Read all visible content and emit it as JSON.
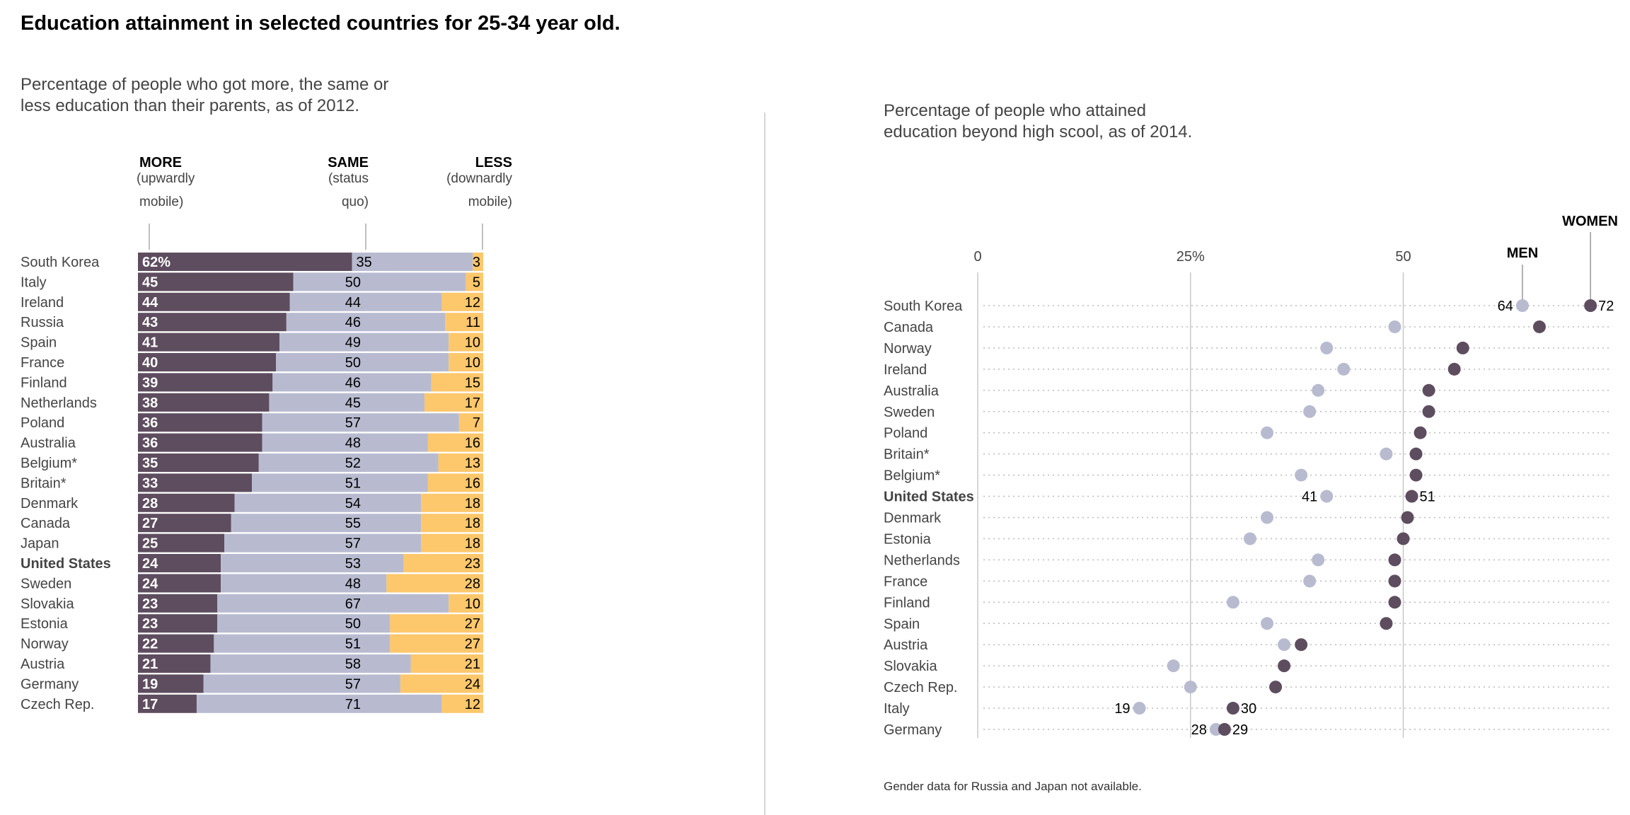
{
  "title": "Education attainment in selected countries for 25-34 year old.",
  "colors": {
    "dark": "#5e4d5f",
    "light": "#b8bbd0",
    "yellow": "#fdc76b",
    "grid": "#c8c8c8"
  },
  "chart_data": [
    {
      "type": "bar",
      "stacked": true,
      "subtitle": [
        "Percentage of people who got more, the same or",
        "less education than their parents, as of 2012."
      ],
      "headers": [
        {
          "label": "MORE",
          "sub1": "(upwardly",
          "sub2": "mobile)"
        },
        {
          "label": "SAME",
          "sub1": "(status",
          "sub2": "quo)"
        },
        {
          "label": "LESS",
          "sub1": "(downardly",
          "sub2": "mobile)"
        }
      ],
      "first_more_suffix": "%",
      "categories": [
        "South Korea",
        "Italy",
        "Ireland",
        "Russia",
        "Spain",
        "France",
        "Finland",
        "Netherlands",
        "Poland",
        "Australia",
        "Belgium*",
        "Britain*",
        "Denmark",
        "Canada",
        "Japan",
        "United States",
        "Sweden",
        "Slovakia",
        "Estonia",
        "Norway",
        "Austria",
        "Germany",
        "Czech Rep."
      ],
      "highlight": "United States",
      "series": [
        {
          "name": "MORE",
          "values": [
            62,
            45,
            44,
            43,
            41,
            40,
            39,
            38,
            36,
            36,
            35,
            33,
            28,
            27,
            25,
            24,
            24,
            23,
            23,
            22,
            21,
            19,
            17
          ]
        },
        {
          "name": "SAME",
          "values": [
            35,
            50,
            44,
            46,
            49,
            50,
            46,
            45,
            57,
            48,
            52,
            51,
            54,
            55,
            57,
            53,
            48,
            67,
            50,
            51,
            58,
            57,
            71
          ]
        },
        {
          "name": "LESS",
          "values": [
            3,
            5,
            12,
            11,
            10,
            10,
            15,
            17,
            7,
            16,
            13,
            16,
            18,
            18,
            18,
            23,
            28,
            10,
            27,
            27,
            21,
            24,
            12
          ]
        }
      ],
      "ylim": [
        0,
        100
      ]
    },
    {
      "type": "scatter",
      "subtitle": [
        "Percentage of people who attained",
        "education beyond high scool, as of 2014."
      ],
      "x_ticks": [
        {
          "value": 0,
          "label": "0"
        },
        {
          "value": 25,
          "label": "25%"
        },
        {
          "value": 50,
          "label": "50"
        }
      ],
      "xlim": [
        0,
        75
      ],
      "legend": {
        "men": "MEN",
        "women": "WOMEN"
      },
      "categories": [
        "South Korea",
        "Canada",
        "Norway",
        "Ireland",
        "Australia",
        "Sweden",
        "Poland",
        "Britain*",
        "Belgium*",
        "United States",
        "Denmark",
        "Estonia",
        "Netherlands",
        "France",
        "Finland",
        "Spain",
        "Austria",
        "Slovakia",
        "Czech Rep.",
        "Italy",
        "Germany"
      ],
      "highlight": "United States",
      "series": [
        {
          "name": "MEN",
          "values": [
            64,
            49,
            41,
            43,
            40,
            39,
            34,
            48,
            38,
            41,
            34,
            32,
            40,
            39,
            30,
            34,
            36,
            23,
            25,
            19,
            28
          ]
        },
        {
          "name": "WOMEN",
          "values": [
            72,
            66,
            57,
            56,
            53,
            53,
            52,
            51.5,
            51.5,
            51,
            50.5,
            50,
            49,
            49,
            49,
            48,
            38,
            36,
            35,
            30,
            29
          ]
        }
      ],
      "labeled_rows": [
        "South Korea",
        "United States",
        "Italy",
        "Germany"
      ],
      "footnote": "Gender data for Russia and Japan not available."
    }
  ]
}
